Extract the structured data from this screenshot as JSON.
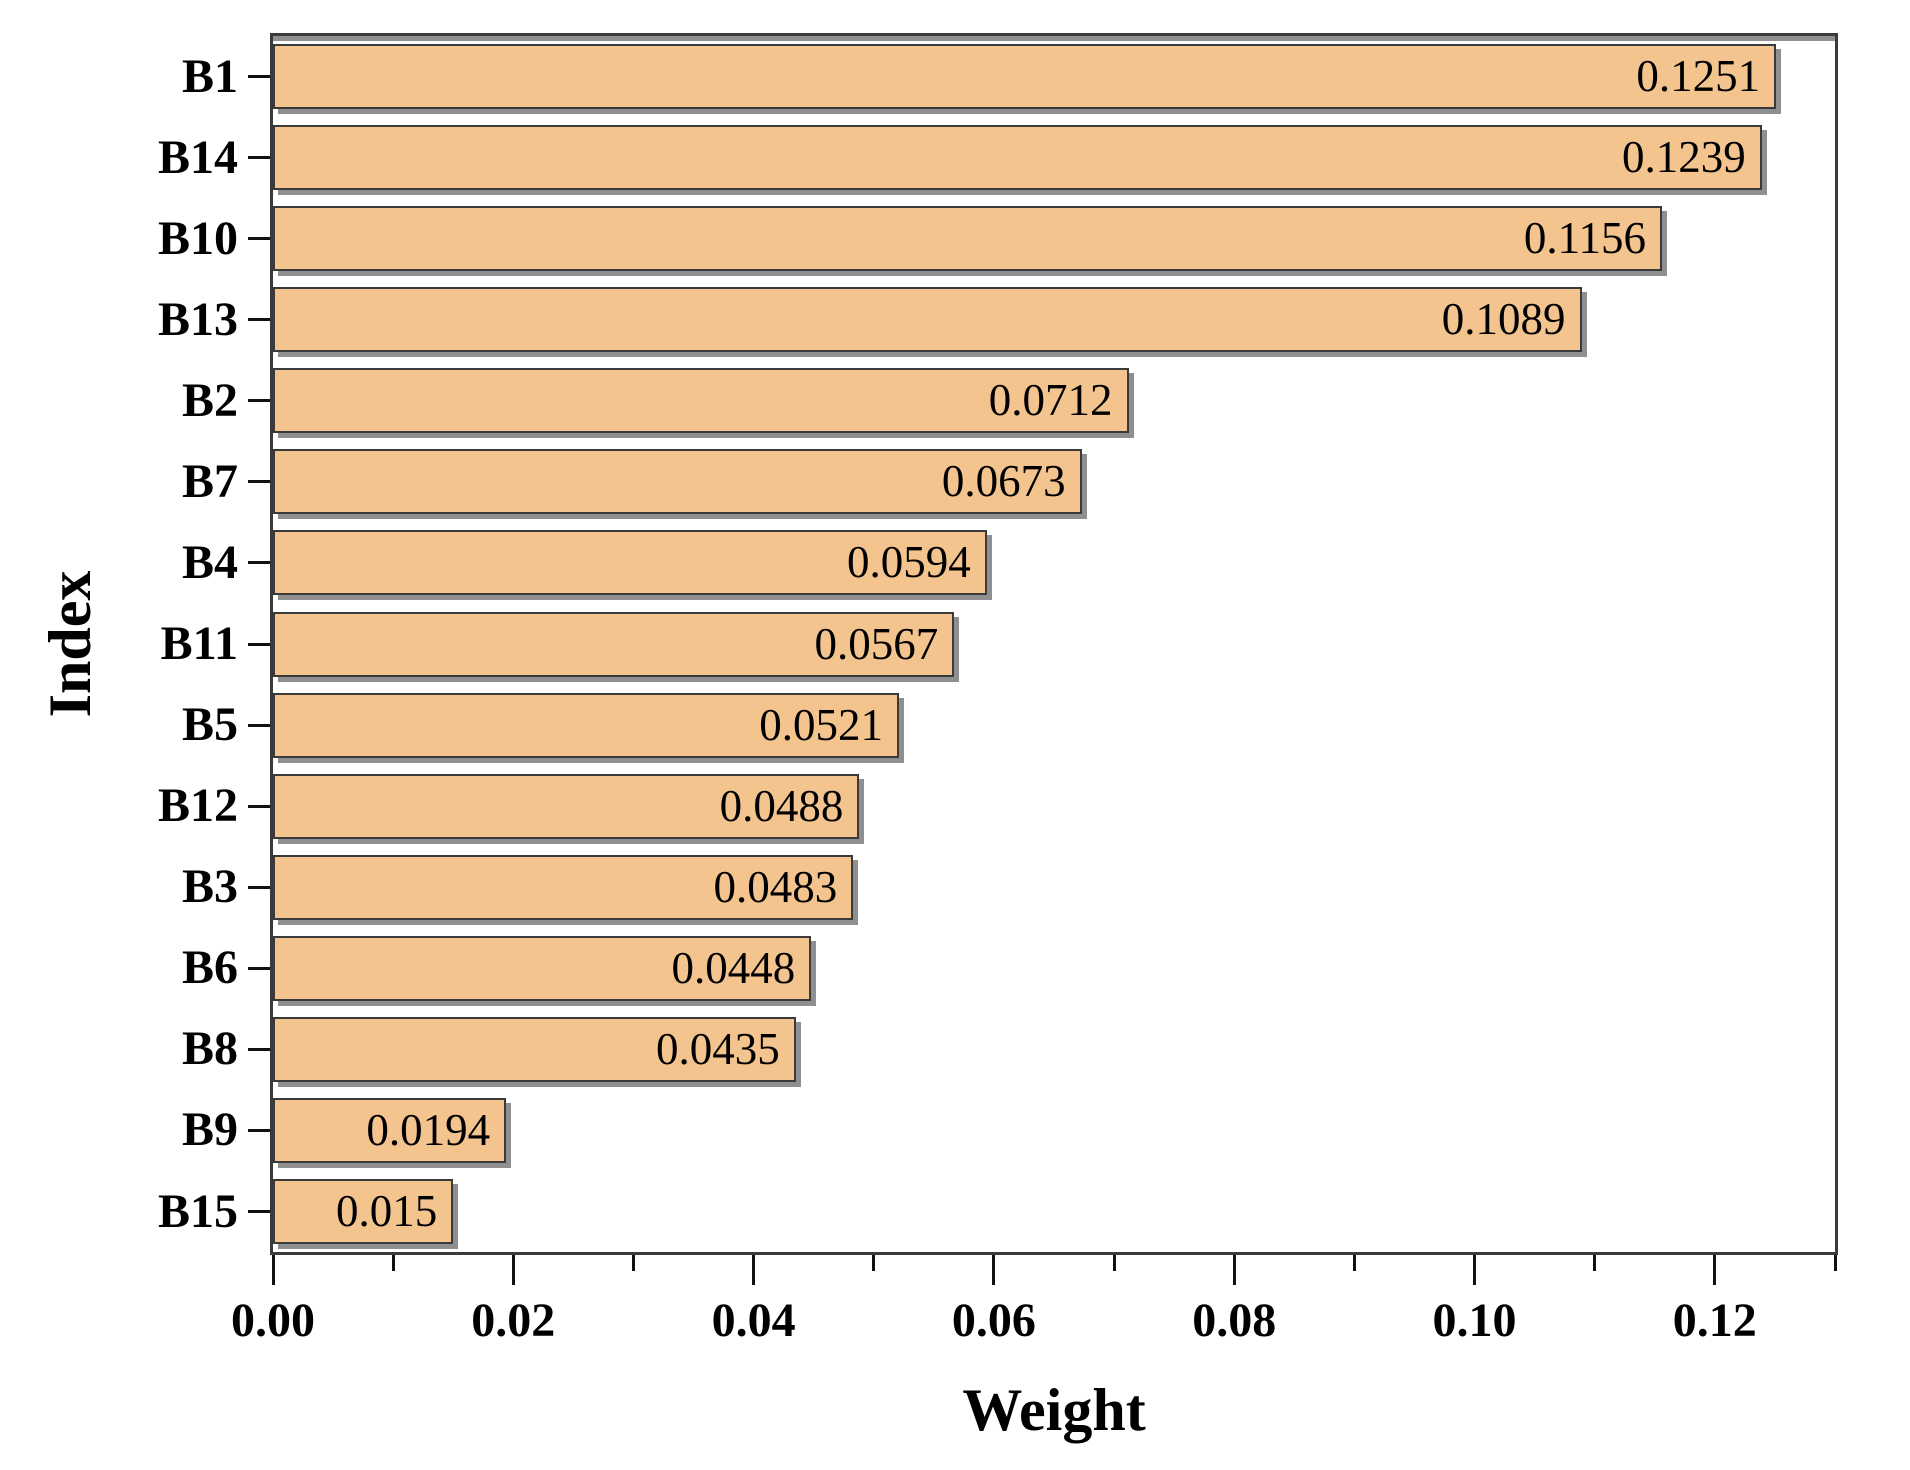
{
  "chart_data": {
    "type": "bar",
    "orientation": "horizontal",
    "title": "",
    "xlabel": "Weight",
    "ylabel": "Index",
    "categories": [
      "B1",
      "B14",
      "B10",
      "B13",
      "B2",
      "B7",
      "B4",
      "B11",
      "B5",
      "B12",
      "B3",
      "B6",
      "B8",
      "B9",
      "B15"
    ],
    "values": [
      0.1251,
      0.1239,
      0.1156,
      0.1089,
      0.0712,
      0.0673,
      0.0594,
      0.0567,
      0.0521,
      0.0488,
      0.0483,
      0.0448,
      0.0435,
      0.0194,
      0.015
    ],
    "value_labels": [
      "0.1251",
      "0.1239",
      "0.1156",
      "0.1089",
      "0.0712",
      "0.0673",
      "0.0594",
      "0.0567",
      "0.0521",
      "0.0488",
      "0.0483",
      "0.0448",
      "0.0435",
      "0.0194",
      "0.015"
    ],
    "xlim": [
      0,
      0.13
    ],
    "xticks_major": {
      "values": [
        0,
        0.02,
        0.04,
        0.06,
        0.08,
        0.1,
        0.12
      ],
      "labels": [
        "0.00",
        "0.02",
        "0.04",
        "0.06",
        "0.08",
        "0.10",
        "0.12"
      ]
    },
    "xticks_minor": [
      0.01,
      0.03,
      0.05,
      0.07,
      0.09,
      0.11,
      0.13
    ],
    "grid": false,
    "legend": null,
    "colors": {
      "bar_fill": "#F4C48E",
      "bar_border": "#3A3A3A",
      "bar_shadow": "#8F8F8F",
      "frame": "#3A3A3A",
      "tick": "#111111",
      "text": "#000000",
      "background": "#FFFFFF"
    }
  }
}
